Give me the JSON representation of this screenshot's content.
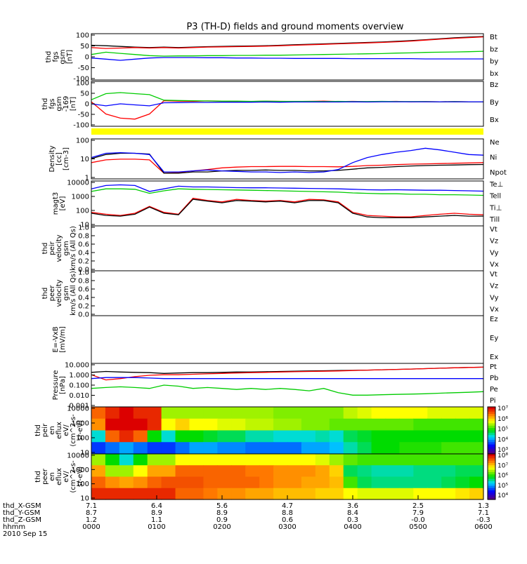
{
  "title": "P3 (TH-D) fields and ground moments overview",
  "chart_data": [
    {
      "type": "line",
      "ylabel": [
        "thd",
        "fgs",
        "gsm",
        "[nT]"
      ],
      "ylim": [
        -100,
        100
      ],
      "yticks": [
        "100",
        "50",
        "0",
        "-50",
        "-100"
      ],
      "series": [
        {
          "name": "Bt",
          "color": "#000000",
          "values": [
            50,
            48,
            45,
            42,
            40,
            42,
            40,
            42,
            44,
            45,
            46,
            47,
            48,
            50,
            52,
            54,
            56,
            58,
            60,
            62,
            64,
            67,
            70,
            74,
            78,
            82,
            85,
            88
          ]
        },
        {
          "name": "bz",
          "color": "#ff0000",
          "values": [
            40,
            36,
            38,
            40,
            38,
            40,
            38,
            40,
            42,
            43,
            44,
            45,
            46,
            48,
            50,
            52,
            54,
            56,
            58,
            60,
            62,
            65,
            68,
            72,
            76,
            80,
            83,
            86
          ]
        },
        {
          "name": "by",
          "color": "#00cc00",
          "values": [
            10,
            20,
            15,
            10,
            5,
            3,
            4,
            4,
            5,
            5,
            6,
            6,
            7,
            7,
            8,
            9,
            10,
            11,
            12,
            13,
            14,
            16,
            17,
            19,
            20,
            21,
            22,
            24
          ]
        },
        {
          "name": "bx",
          "color": "#0000ff",
          "values": [
            -5,
            -10,
            -15,
            -10,
            -5,
            -3,
            -3,
            -3,
            -4,
            -4,
            -5,
            -5,
            -6,
            -6,
            -7,
            -7,
            -7,
            -7,
            -8,
            -8,
            -8,
            -8,
            -8,
            -9,
            -9,
            -9,
            -9,
            -9
          ]
        }
      ]
    },
    {
      "type": "line",
      "ylabel": [
        "thd",
        "fgs",
        "gsm",
        "-169",
        "[nT]"
      ],
      "ylim": [
        -120,
        100
      ],
      "yticks": [
        "100",
        "50",
        "0",
        "-50",
        "-100"
      ],
      "series": [
        {
          "name": "Bz",
          "color": "#ff0000",
          "values": [
            0,
            -60,
            -80,
            -85,
            -60,
            5,
            3,
            2,
            4,
            3,
            2,
            1,
            3,
            2,
            1,
            2,
            3,
            1,
            2,
            0,
            1,
            2,
            0,
            1,
            0,
            1,
            0,
            0
          ]
        },
        {
          "name": "By",
          "color": "#00cc00",
          "values": [
            10,
            40,
            45,
            40,
            35,
            8,
            6,
            5,
            4,
            3,
            3,
            2,
            3,
            2,
            2,
            2,
            1,
            2,
            1,
            1,
            2,
            1,
            1,
            1,
            0,
            1,
            0,
            0
          ]
        },
        {
          "name": "Bx",
          "color": "#0000ff",
          "values": [
            -10,
            -20,
            -10,
            -15,
            -20,
            -5,
            -4,
            -3,
            -3,
            -2,
            -2,
            -2,
            -1,
            -2,
            -1,
            -1,
            -1,
            -1,
            0,
            -1,
            0,
            0,
            0,
            0,
            0,
            0,
            0,
            0
          ]
        }
      ]
    },
    {
      "type": "line",
      "ylabel": [
        "Density",
        "[cc]",
        "[cm-3]"
      ],
      "scale": "log",
      "ylim": [
        0.3,
        300
      ],
      "yticks": [
        "100",
        "10",
        "1"
      ],
      "series": [
        {
          "name": "Ne",
          "color": "#ff0000",
          "values": [
            5,
            8,
            9,
            9,
            8,
            0.8,
            0.9,
            1.2,
            1.5,
            2,
            2.3,
            2.5,
            2.5,
            2.6,
            2.6,
            2.5,
            2.5,
            2.4,
            2.6,
            3,
            3.2,
            3.5,
            3.8,
            4,
            4.2,
            4.5,
            4.7,
            5
          ]
        },
        {
          "name": "Ni",
          "color": "#000000",
          "values": [
            10,
            20,
            25,
            25,
            22,
            0.8,
            0.8,
            1,
            1,
            1.2,
            1.3,
            1.3,
            1.4,
            1.3,
            1.3,
            1.2,
            1.2,
            1.3,
            1.6,
            2,
            2.2,
            2.5,
            2.8,
            3,
            3.2,
            3.3,
            3.5,
            3.6
          ]
        },
        {
          "name": "Npot",
          "color": "#0000ff",
          "values": [
            12,
            25,
            28,
            25,
            20,
            1,
            1,
            1.2,
            1.4,
            1.2,
            1.1,
            1,
            1,
            0.9,
            1,
            0.9,
            1,
            1.5,
            5,
            12,
            20,
            30,
            40,
            60,
            45,
            30,
            20,
            18
          ]
        }
      ]
    },
    {
      "type": "line",
      "ylabel": [
        "magt3",
        "[eV]"
      ],
      "scale": "log",
      "ylim": [
        10,
        10000
      ],
      "yticks": [
        "10000",
        "1000",
        "100",
        "10"
      ],
      "series": [
        {
          "name": "Te⊥",
          "color": "#ff0000",
          "values": [
            80,
            60,
            50,
            70,
            200,
            80,
            60,
            700,
            500,
            400,
            600,
            500,
            450,
            500,
            400,
            600,
            550,
            400,
            80,
            50,
            45,
            40,
            40,
            50,
            60,
            70,
            60,
            55
          ]
        },
        {
          "name": "Tell",
          "color": "#000000",
          "values": [
            70,
            50,
            45,
            60,
            180,
            70,
            55,
            600,
            450,
            350,
            500,
            450,
            400,
            450,
            350,
            500,
            500,
            350,
            70,
            40,
            35,
            35,
            35,
            40,
            45,
            50,
            45,
            45
          ]
        },
        {
          "name": "Ti⊥",
          "color": "#0000ff",
          "values": [
            3000,
            5000,
            5500,
            5000,
            2000,
            3000,
            4500,
            4000,
            4000,
            3800,
            3600,
            3500,
            3500,
            3400,
            3300,
            3200,
            3100,
            3000,
            2800,
            2600,
            2500,
            2600,
            2500,
            2400,
            2400,
            2300,
            2200,
            2100
          ]
        },
        {
          "name": "Till",
          "color": "#00cc00",
          "values": [
            2000,
            3000,
            3000,
            2800,
            1500,
            2200,
            3000,
            2800,
            2700,
            2600,
            2500,
            2400,
            2300,
            2200,
            2100,
            2000,
            1900,
            1800,
            1600,
            1500,
            1400,
            1400,
            1300,
            1300,
            1200,
            1200,
            1150,
            1100
          ]
        }
      ]
    },
    {
      "type": "line",
      "ylabel": [
        "thd",
        "peir",
        "velocity",
        "gsm",
        "km/s (All Qs)"
      ],
      "ylim": [
        0,
        1
      ],
      "yticks": [
        "1.0",
        "0.8",
        "0.6",
        "0.4",
        "0.2",
        "0.0"
      ],
      "series": [
        {
          "name": "Vt",
          "color": "#000000"
        },
        {
          "name": "Vz",
          "color": "#ff0000"
        },
        {
          "name": "Vy",
          "color": "#00cc00"
        },
        {
          "name": "Vx",
          "color": "#0000ff"
        }
      ]
    },
    {
      "type": "line",
      "ylabel": [
        "thd",
        "peer",
        "velocity",
        "gsm",
        "km/s (All Qs)"
      ],
      "ylim": [
        0,
        1
      ],
      "yticks": [
        "1.0",
        "0.8",
        "0.6",
        "0.4",
        "0.2",
        "0.0"
      ],
      "series": [
        {
          "name": "Vt",
          "color": "#000000"
        },
        {
          "name": "Vz",
          "color": "#ff0000"
        },
        {
          "name": "Vy",
          "color": "#00cc00"
        },
        {
          "name": "Vx",
          "color": "#0000ff"
        }
      ]
    },
    {
      "type": "line",
      "ylabel": [
        "E=-VxB",
        "[mV/m]"
      ],
      "yticks": [],
      "series": [
        {
          "name": "Ez",
          "color": "#ff0000"
        },
        {
          "name": "Ey",
          "color": "#00cc00"
        },
        {
          "name": "Ex",
          "color": "#0000ff"
        }
      ]
    },
    {
      "type": "line",
      "ylabel": [
        "Pressure",
        "[nPa]"
      ],
      "scale": "log",
      "ylim": [
        0.001,
        10
      ],
      "yticks": [
        "10.000",
        "1.000",
        "0.100",
        "0.010",
        "0.001"
      ],
      "series": [
        {
          "name": "Pt",
          "color": "#000000",
          "values": [
            1.5,
            1.8,
            1.6,
            1.5,
            1.4,
            1.2,
            1.3,
            1.4,
            1.4,
            1.5,
            1.6,
            1.6,
            1.7,
            1.8,
            1.9,
            2,
            2.1,
            2.2,
            2.3,
            2.4,
            2.6,
            2.8,
            3,
            3.3,
            3.6,
            3.9,
            4.2,
            4.5
          ]
        },
        {
          "name": "Pb",
          "color": "#ff0000",
          "values": [
            0.9,
            0.3,
            0.4,
            0.6,
            0.8,
            0.9,
            0.9,
            1,
            1.1,
            1.2,
            1.3,
            1.4,
            1.5,
            1.6,
            1.7,
            1.8,
            1.9,
            2,
            2.2,
            2.4,
            2.6,
            2.8,
            3,
            3.3,
            3.6,
            3.9,
            4.2,
            4.5
          ]
        },
        {
          "name": "Pe",
          "color": "#00cc00",
          "values": [
            0.05,
            0.06,
            0.07,
            0.06,
            0.05,
            0.1,
            0.08,
            0.05,
            0.06,
            0.05,
            0.04,
            0.05,
            0.04,
            0.05,
            0.04,
            0.03,
            0.05,
            0.02,
            0.012,
            0.012,
            0.013,
            0.014,
            0.015,
            0.016,
            0.018,
            0.02,
            0.022,
            0.025
          ]
        },
        {
          "name": "Pi",
          "color": "#0000ff",
          "values": [
            0.4,
            0.5,
            0.5,
            0.5,
            0.45,
            0.4,
            0.4,
            0.4,
            0.4,
            0.4,
            0.4,
            0.4,
            0.4,
            0.4,
            0.4,
            0.4,
            0.4,
            0.4,
            0.4,
            0.4,
            0.4,
            0.4,
            0.4,
            0.4,
            0.4,
            0.4,
            0.4,
            0.4
          ]
        }
      ]
    },
    {
      "type": "heatmap",
      "ylabel": [
        "thd",
        "peir",
        "en",
        "eflux",
        "eV/",
        "(cm^2-s-",
        "sr-eV)"
      ],
      "scale": "log",
      "yticks": [
        "10000",
        "1000",
        "100",
        "10"
      ],
      "colorbar_ticks": [
        "10⁷",
        "10⁶",
        "10⁵",
        "10⁴",
        "10³"
      ],
      "colorbar_range": [
        1000,
        10000000
      ],
      "energy_bins": [
        "10000",
        "1000",
        "100",
        "10"
      ],
      "values": [
        [
          6.5,
          6.8,
          7,
          6.8,
          6.8,
          5.5,
          5.5,
          5.5,
          5.5,
          5.5,
          5.5,
          5.5,
          5.5,
          5.4,
          5.4,
          5.4,
          5.4,
          5.4,
          5.6,
          5.7,
          5.8,
          5.8,
          5.8,
          5.8,
          5.7,
          5.7,
          5.7,
          5.7
        ],
        [
          6.3,
          7,
          7,
          7,
          6.8,
          5.8,
          6,
          5.8,
          5.8,
          5.7,
          5.7,
          5.6,
          5.6,
          5.5,
          5.5,
          5.4,
          5.4,
          5.3,
          5.3,
          5.3,
          5.3,
          5.3,
          5.3,
          5.2,
          5.2,
          5.2,
          5.2,
          5.2
        ],
        [
          4.5,
          6.5,
          6.8,
          6.5,
          5,
          4.5,
          5,
          5,
          4.9,
          4.8,
          4.8,
          4.6,
          4.6,
          4.5,
          4.5,
          4.5,
          4.6,
          4.5,
          4.8,
          4.9,
          5,
          5,
          5,
          5,
          5,
          5,
          5,
          5
        ],
        [
          3.8,
          4,
          4.2,
          4,
          3.8,
          3.8,
          4,
          4.2,
          4.2,
          4.1,
          4.1,
          4,
          4,
          4,
          4,
          4.2,
          4.2,
          4.3,
          4.6,
          4.8,
          5,
          5,
          5.1,
          5.1,
          5.1,
          5.2,
          5.2,
          5.2
        ]
      ]
    },
    {
      "type": "heatmap",
      "ylabel": [
        "thd",
        "peer",
        "en",
        "eflux",
        "eV/",
        "(cm^2-s-",
        "sr-eV)"
      ],
      "scale": "log",
      "yticks": [
        "10000",
        "1000",
        "100",
        "10"
      ],
      "colorbar_ticks": [
        "10⁸",
        "10⁷",
        "10⁶",
        "10⁵",
        "10⁴"
      ],
      "colorbar_range": [
        10000,
        100000000
      ],
      "energy_bins": [
        "10000",
        "1000",
        "100",
        "10"
      ],
      "values": [
        [
          6.5,
          6,
          5.5,
          6,
          6.5,
          6.5,
          6.8,
          6.8,
          6.8,
          6.8,
          6.8,
          6.8,
          6.8,
          6.8,
          6.8,
          6.8,
          6.7,
          6.5,
          6.3,
          6.2,
          6.2,
          6.2,
          6.2,
          6.2,
          6.2,
          6.2,
          6.2,
          6.2
        ],
        [
          7.2,
          6.5,
          6.5,
          6.8,
          7.2,
          7.2,
          7.5,
          7.5,
          7.5,
          7.5,
          7.5,
          7.4,
          7.4,
          7.3,
          7.3,
          7.3,
          7.2,
          7,
          5.8,
          5.7,
          5.6,
          5.6,
          5.6,
          5.7,
          5.7,
          5.7,
          5.8,
          5.8
        ],
        [
          7.5,
          7.3,
          7.2,
          7.3,
          7.5,
          7.6,
          7.6,
          7.6,
          7.5,
          7.5,
          7.5,
          7.5,
          7.4,
          7.3,
          7.3,
          7.2,
          7.2,
          7.1,
          6.2,
          5.8,
          5.7,
          5.7,
          5.7,
          5.7,
          5.7,
          5.8,
          5.9,
          6
        ],
        [
          7.8,
          7.8,
          7.8,
          7.8,
          7.8,
          7.8,
          7.5,
          7.5,
          7.4,
          7.3,
          7.3,
          7.2,
          7.2,
          7.1,
          7.1,
          7.1,
          7,
          7,
          6.8,
          6.7,
          6.7,
          6.7,
          6.7,
          6.8,
          6.8,
          6.8,
          6.9,
          7
        ]
      ]
    }
  ],
  "x_axis": {
    "row_labels": [
      "thd_X-GSM",
      "thd_Y-GSM",
      "thd_Z-GSM",
      "hhmm",
      "2010 Sep 15"
    ],
    "columns": [
      {
        "x": "7.1",
        "y": "8.7",
        "z": "1.2",
        "t": "0000"
      },
      {
        "x": "6.4",
        "y": "8.9",
        "z": "1.1",
        "t": "0100"
      },
      {
        "x": "5.6",
        "y": "8.9",
        "z": "0.9",
        "t": "0200"
      },
      {
        "x": "4.7",
        "y": "8.8",
        "z": "0.6",
        "t": "0300"
      },
      {
        "x": "3.6",
        "y": "8.4",
        "z": "0.3",
        "t": "0400"
      },
      {
        "x": "2.5",
        "y": "7.9",
        "z": "-0.0",
        "t": "0500"
      },
      {
        "x": "1.3",
        "y": "7.1",
        "z": "-0.3",
        "t": "0600"
      }
    ]
  }
}
